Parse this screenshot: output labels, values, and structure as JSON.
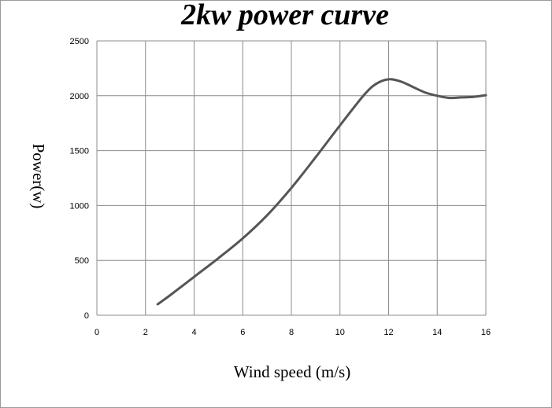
{
  "chart_data": {
    "type": "line",
    "title": "2kw power curve",
    "xlabel": "Wind speed (m/s)",
    "ylabel": "Power(w)",
    "xlim": [
      0,
      16
    ],
    "ylim": [
      0,
      2500
    ],
    "grid": true,
    "x_ticks": [
      "0",
      "2",
      "4",
      "6",
      "8",
      "10",
      "12",
      "14",
      "16"
    ],
    "y_ticks": [
      "0",
      "500",
      "1000",
      "1500",
      "2000",
      "2500"
    ],
    "series": [
      {
        "color": "#555555",
        "points": [
          [
            2.5,
            100
          ],
          [
            3,
            180
          ],
          [
            4,
            350
          ],
          [
            5,
            520
          ],
          [
            6,
            700
          ],
          [
            7,
            910
          ],
          [
            8,
            1160
          ],
          [
            9,
            1440
          ],
          [
            10,
            1730
          ],
          [
            11,
            2010
          ],
          [
            11.5,
            2110
          ],
          [
            12,
            2150
          ],
          [
            12.5,
            2130
          ],
          [
            13,
            2080
          ],
          [
            13.5,
            2030
          ],
          [
            14,
            2000
          ],
          [
            14.5,
            1980
          ],
          [
            15,
            1985
          ],
          [
            15.5,
            1990
          ],
          [
            16,
            2005
          ]
        ]
      }
    ]
  }
}
